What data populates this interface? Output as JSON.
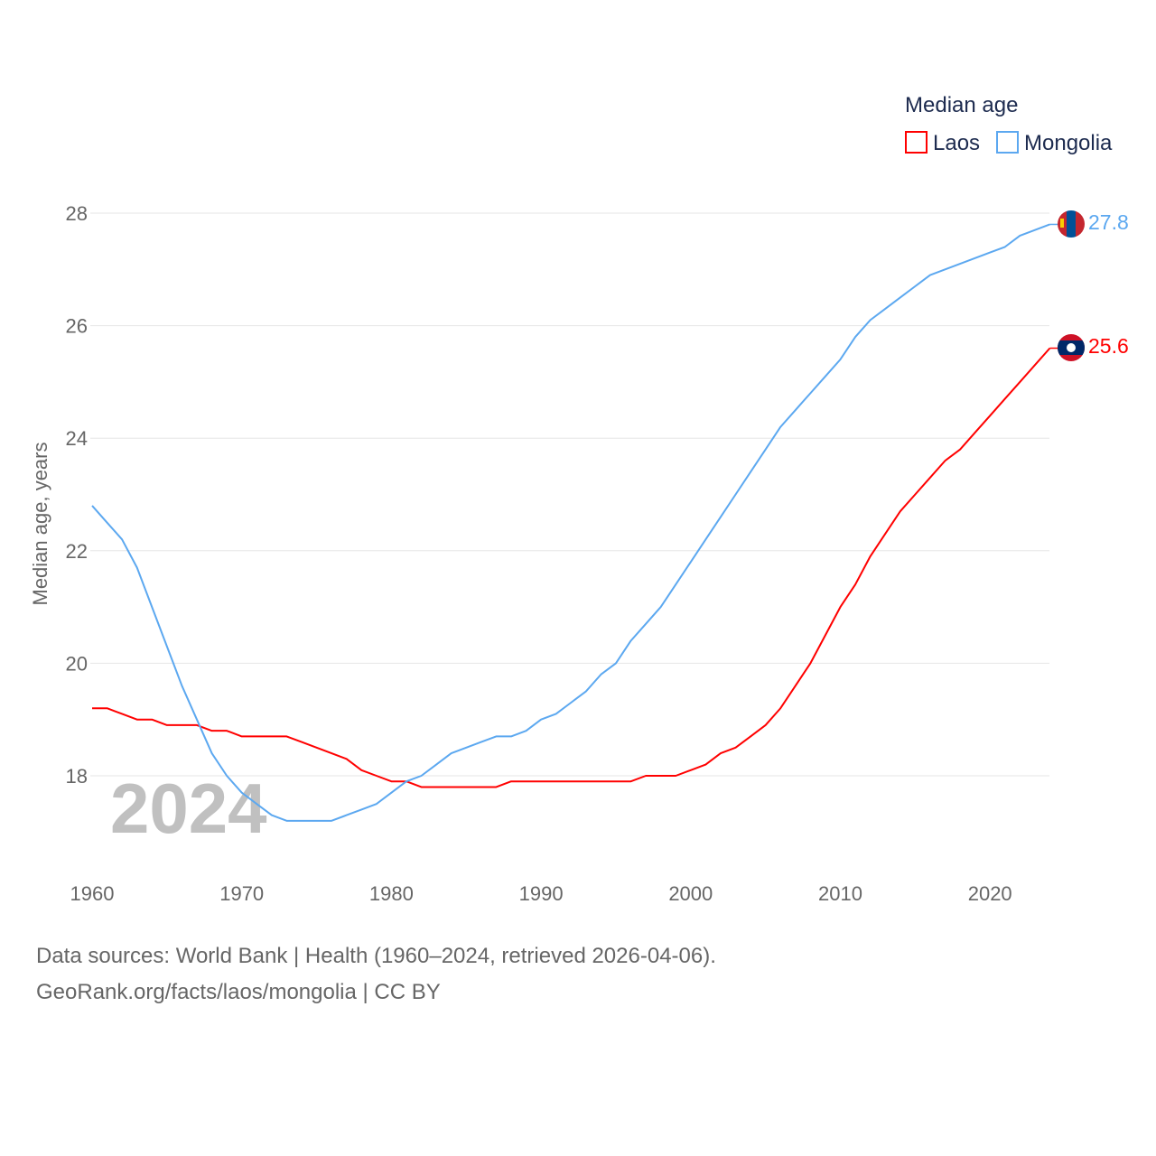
{
  "chart_data": {
    "type": "line",
    "title": "",
    "xlabel": "",
    "ylabel": "Median age, years",
    "xlim": [
      1960,
      2024
    ],
    "ylim": [
      17,
      28.5
    ],
    "xticks": [
      "1960",
      "1970",
      "1980",
      "1990",
      "2000",
      "2010",
      "2020"
    ],
    "yticks": [
      "18",
      "20",
      "22",
      "24",
      "26",
      "28"
    ],
    "grid": true,
    "legend": {
      "title": "Median age",
      "placement": "top-right"
    },
    "current_year_label": "2024",
    "x": [
      1960,
      1961,
      1962,
      1963,
      1964,
      1965,
      1966,
      1967,
      1968,
      1969,
      1970,
      1971,
      1972,
      1973,
      1974,
      1975,
      1976,
      1977,
      1978,
      1979,
      1980,
      1981,
      1982,
      1983,
      1984,
      1985,
      1986,
      1987,
      1988,
      1989,
      1990,
      1991,
      1992,
      1993,
      1994,
      1995,
      1996,
      1997,
      1998,
      1999,
      2000,
      2001,
      2002,
      2003,
      2004,
      2005,
      2006,
      2007,
      2008,
      2009,
      2010,
      2011,
      2012,
      2013,
      2014,
      2015,
      2016,
      2017,
      2018,
      2019,
      2020,
      2021,
      2022,
      2023,
      2024
    ],
    "series": [
      {
        "name": "Laos",
        "color": "#ff0000",
        "end_label": "25.6",
        "values": [
          19.2,
          19.2,
          19.1,
          19.0,
          19.0,
          18.9,
          18.9,
          18.9,
          18.8,
          18.8,
          18.7,
          18.7,
          18.7,
          18.7,
          18.6,
          18.5,
          18.4,
          18.3,
          18.1,
          18.0,
          17.9,
          17.9,
          17.8,
          17.8,
          17.8,
          17.8,
          17.8,
          17.8,
          17.9,
          17.9,
          17.9,
          17.9,
          17.9,
          17.9,
          17.9,
          17.9,
          17.9,
          18.0,
          18.0,
          18.0,
          18.1,
          18.2,
          18.4,
          18.5,
          18.7,
          18.9,
          19.2,
          19.6,
          20.0,
          20.5,
          21.0,
          21.4,
          21.9,
          22.3,
          22.7,
          23.0,
          23.3,
          23.6,
          23.8,
          24.1,
          24.4,
          24.7,
          25.0,
          25.3,
          25.6
        ]
      },
      {
        "name": "Mongolia",
        "color": "#5ca8f0",
        "end_label": "27.8",
        "values": [
          22.8,
          22.5,
          22.2,
          21.7,
          21.0,
          20.3,
          19.6,
          19.0,
          18.4,
          18.0,
          17.7,
          17.5,
          17.3,
          17.2,
          17.2,
          17.2,
          17.2,
          17.3,
          17.4,
          17.5,
          17.7,
          17.9,
          18.0,
          18.2,
          18.4,
          18.5,
          18.6,
          18.7,
          18.7,
          18.8,
          19.0,
          19.1,
          19.3,
          19.5,
          19.8,
          20.0,
          20.4,
          20.7,
          21.0,
          21.4,
          21.8,
          22.2,
          22.6,
          23.0,
          23.4,
          23.8,
          24.2,
          24.5,
          24.8,
          25.1,
          25.4,
          25.8,
          26.1,
          26.3,
          26.5,
          26.7,
          26.9,
          27.0,
          27.1,
          27.2,
          27.3,
          27.4,
          27.6,
          27.7,
          27.8
        ]
      }
    ]
  },
  "footer": {
    "line1": "Data sources: World Bank | Health (1960–2024, retrieved 2026-04-06).",
    "line2": "GeoRank.org/facts/laos/mongolia | CC BY"
  }
}
